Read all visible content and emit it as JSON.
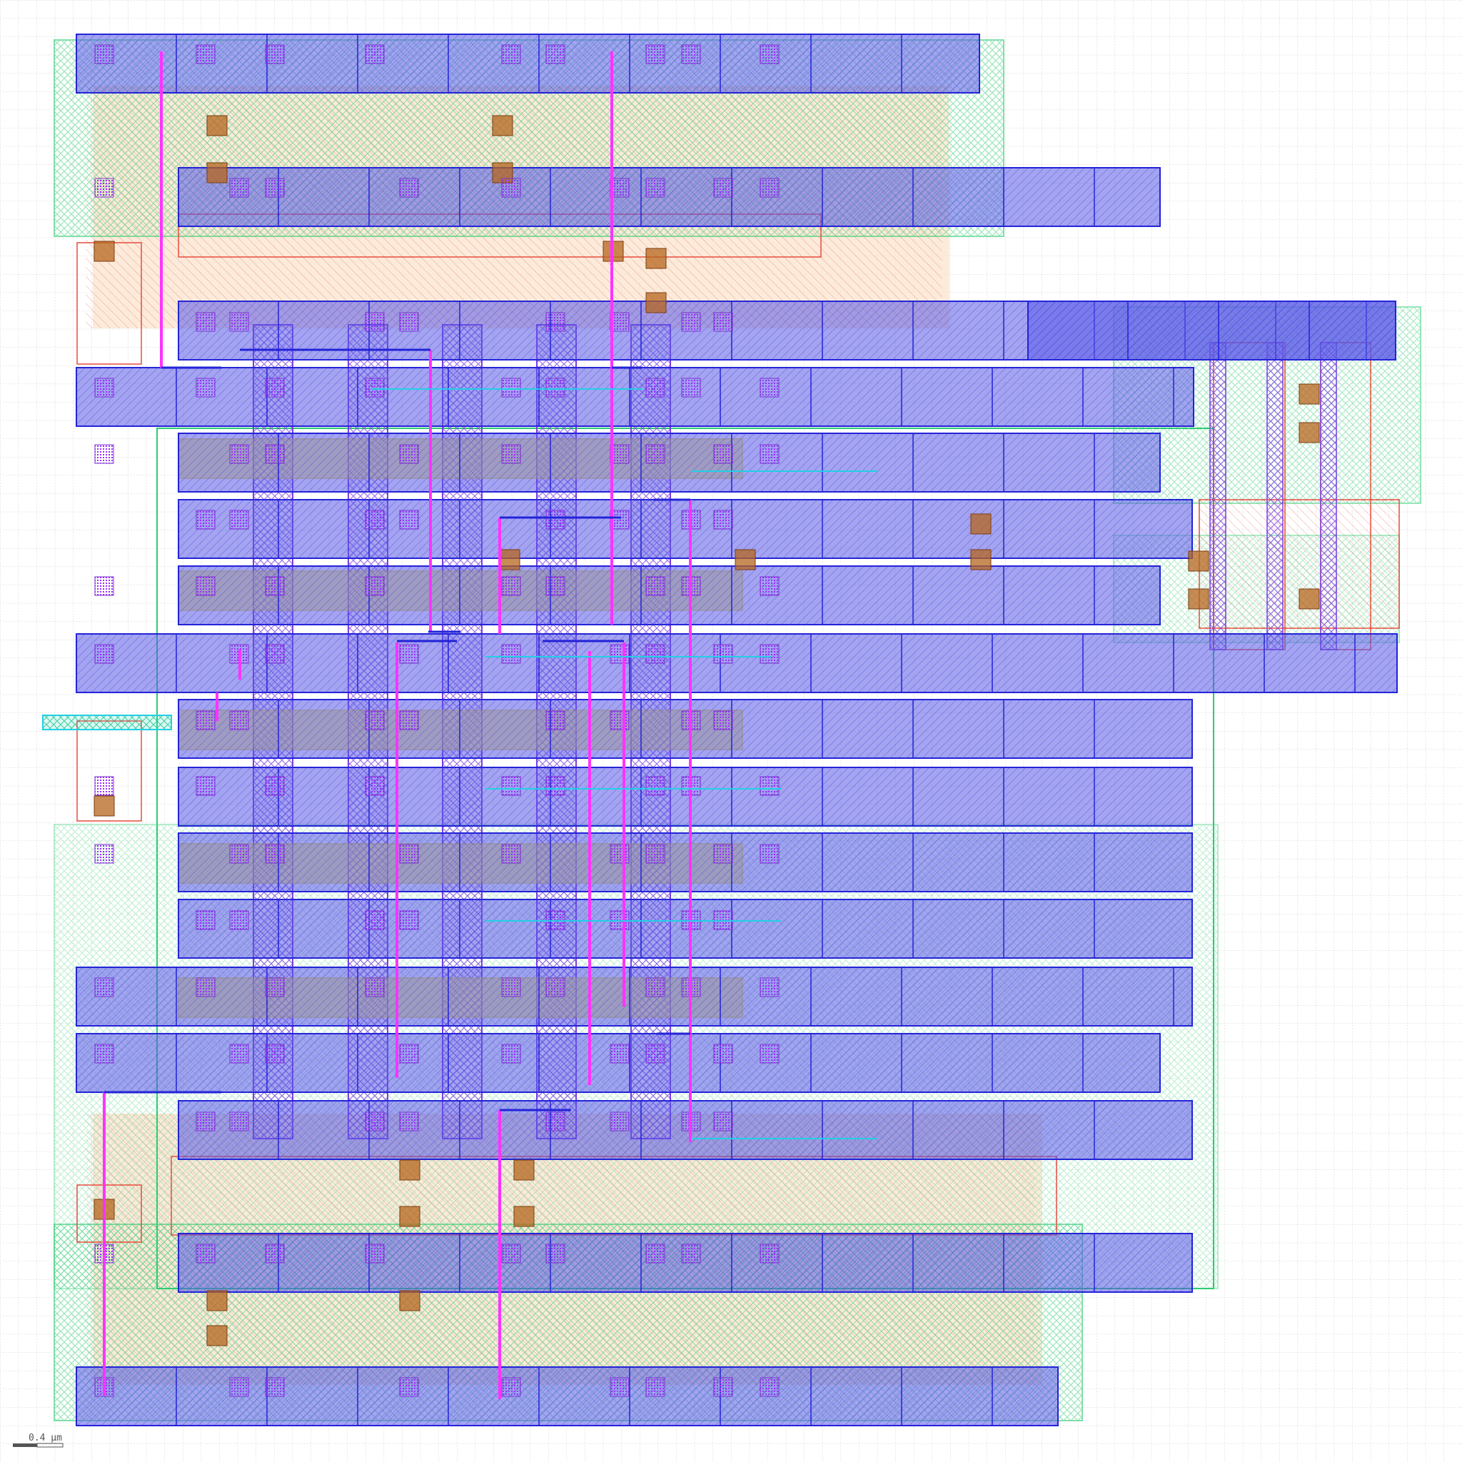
{
  "scale_bar": {
    "label": "0.4 µm"
  },
  "layers": {
    "grid": {
      "color": "#c8c8c8"
    },
    "nwell": {
      "color": "#2ecc71"
    },
    "diff": {
      "color": "#e74c3c"
    },
    "implant": {
      "color": "#f5c08a"
    },
    "poly": {
      "color": "#7b3fe4"
    },
    "met1": {
      "color": "#2323d8"
    },
    "met2": {
      "color": "#ff33ff"
    },
    "via": {
      "color": "#9b30ff"
    },
    "contact": {
      "color": "#b5651d"
    },
    "highlight": {
      "color": "#f0e040"
    },
    "pin": {
      "color": "#22cfe6"
    }
  }
}
